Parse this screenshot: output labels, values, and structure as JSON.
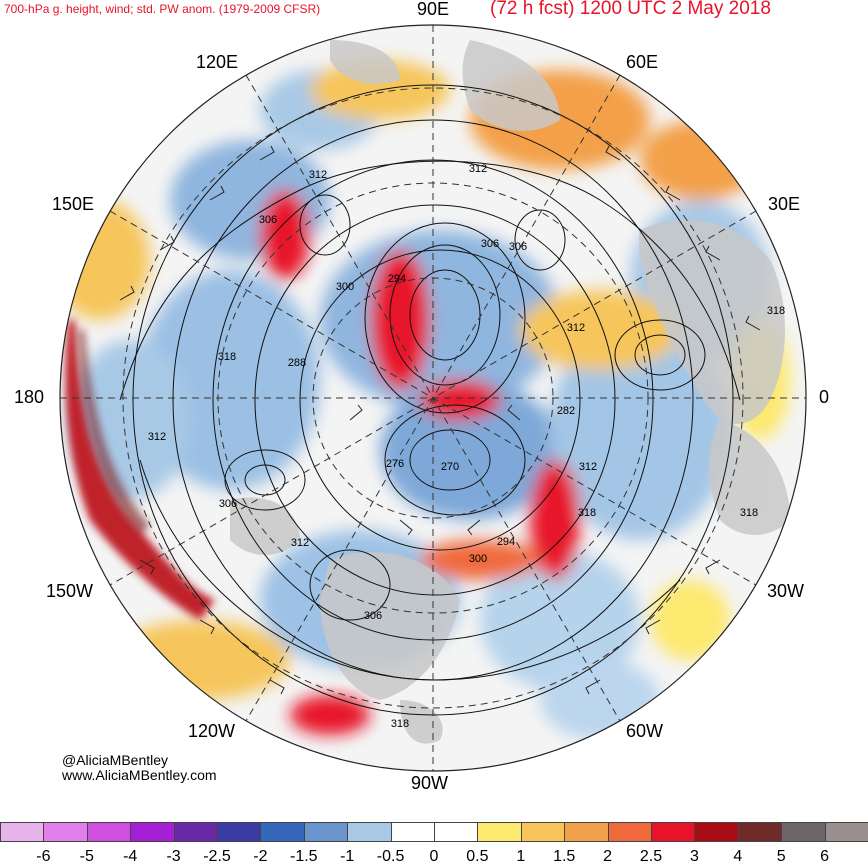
{
  "header": {
    "left_title": "700-hPa g. height, wind; std. PW anom. (1979-2009 CFSR)",
    "right_title": "(72 h fcst) 1200 UTC 2 May 2018"
  },
  "longitude_labels": {
    "lon_90e": "90E",
    "lon_120e": "120E",
    "lon_60e": "60E",
    "lon_150e": "150E",
    "lon_30e": "30E",
    "lon_180": "180",
    "lon_0": "0",
    "lon_150w": "150W",
    "lon_30w": "30W",
    "lon_120w": "120W",
    "lon_60w": "60W",
    "lon_90w": "90W"
  },
  "contour_labels": [
    "312",
    "306",
    "306",
    "300",
    "294",
    "306",
    "312",
    "318",
    "288",
    "318",
    "312",
    "282",
    "276",
    "270",
    "312",
    "318",
    "318",
    "306",
    "312",
    "300",
    "294",
    "306",
    "318",
    "312"
  ],
  "credits": {
    "handle": "@AliciaMBentley",
    "website": "www.AliciaMBentley.com"
  },
  "colorbar": {
    "labels": [
      "-6",
      "-5",
      "-4",
      "-3",
      "-2.5",
      "-2",
      "-1.5",
      "-1",
      "-0.5",
      "0",
      "0.5",
      "1",
      "1.5",
      "2",
      "2.5",
      "3",
      "4",
      "5",
      "6"
    ],
    "colors": [
      "#e6b3ec",
      "#e07fea",
      "#cf4fdf",
      "#a51fd6",
      "#6a2aa8",
      "#3a3ba3",
      "#3467b9",
      "#6a95cd",
      "#a8c9e6",
      "#ffffff",
      "#ffffff",
      "#fde96f",
      "#f6c65c",
      "#f3a04a",
      "#f06a3e",
      "#e8132a",
      "#a80d14",
      "#6f2a2a",
      "#6e6666",
      "#9a8e8e"
    ]
  },
  "colors": {
    "title_red": "#e8132a",
    "land_gray": "#c8c8c8"
  }
}
